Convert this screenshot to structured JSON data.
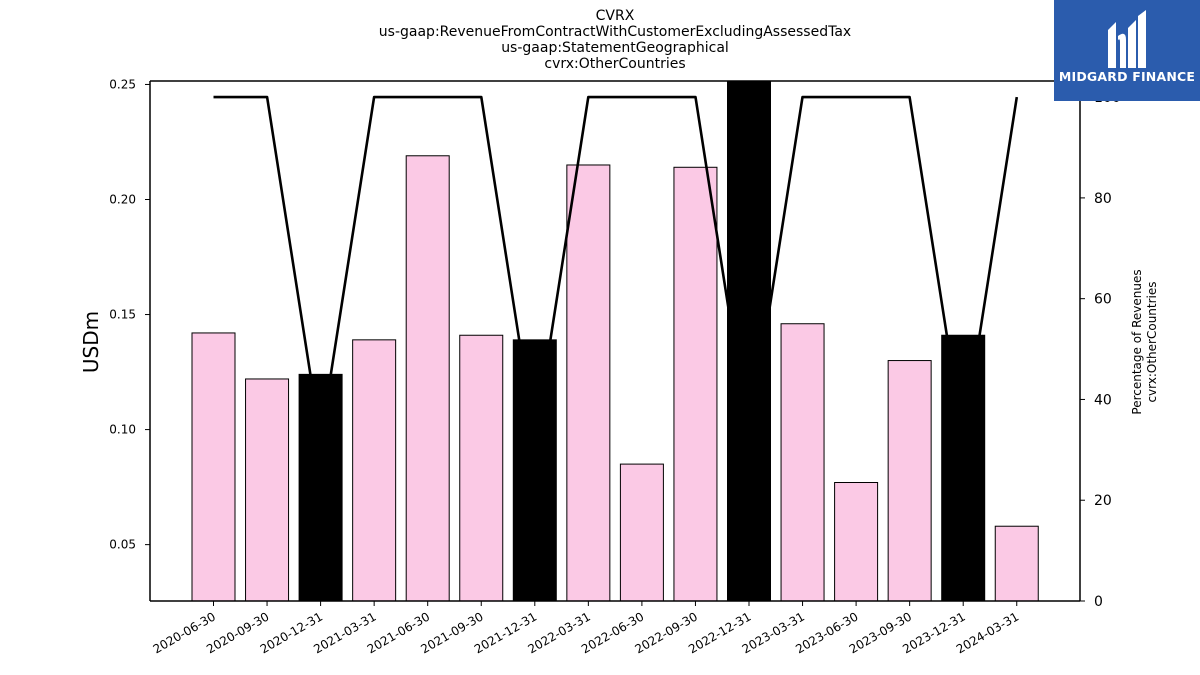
{
  "title_lines": [
    "CVRX",
    "us-gaap:RevenueFromContractWithCustomerExcludingAssessedTax",
    "us-gaap:StatementGeographical",
    "cvrx:OtherCountries"
  ],
  "logo": {
    "text": "MIDGARD FINANCE",
    "color": "#2b5cad"
  },
  "chart_data": {
    "type": "bar",
    "categories": [
      "2020-06-30",
      "2020-09-30",
      "2020-12-31",
      "2021-03-31",
      "2021-06-30",
      "2021-09-30",
      "2021-12-31",
      "2022-03-31",
      "2022-06-30",
      "2022-09-30",
      "2022-12-31",
      "2023-03-31",
      "2023-06-30",
      "2023-09-30",
      "2023-12-31",
      "2024-03-31"
    ],
    "series": [
      {
        "values": [
          0.142,
          0.122,
          0.124,
          0.139,
          0.219,
          0.141,
          0.139,
          0.215,
          0.085,
          0.214,
          0.275,
          0.146,
          0.077,
          0.13,
          0.141,
          0.058
        ],
        "type": "bar"
      },
      {
        "values": [
          100,
          100,
          32,
          100,
          100,
          100,
          32,
          100,
          100,
          100,
          32,
          100,
          100,
          100,
          32,
          100
        ],
        "type": "line",
        "axis": "right"
      }
    ],
    "bar_colors": {
      "quarter": "#fbc9e5",
      "year_end": "#000000"
    },
    "year_end_categories": [
      "2020-12-31",
      "2021-12-31",
      "2022-12-31",
      "2023-12-31"
    ],
    "ylabel": "USDm",
    "ylabel_right": [
      "Percentage of Revenues",
      "cvrx:OtherCountries"
    ],
    "ylim": [
      0.0255,
      0.2515
    ],
    "yticks": [
      "0.05",
      "0.10",
      "0.15",
      "0.20",
      "0.25"
    ],
    "ylim_right": [
      0,
      103.2
    ],
    "yticks_right": [
      "0",
      "20",
      "40",
      "60",
      "80",
      "100"
    ],
    "grid": false,
    "legend": "none"
  }
}
